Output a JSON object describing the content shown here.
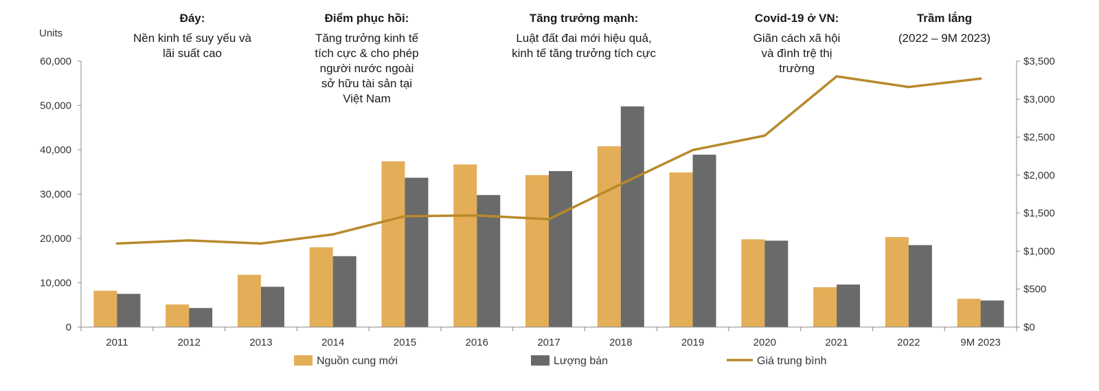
{
  "annotations": [
    {
      "title": "Đáy:",
      "text": "Nền kinh tế suy yếu và\nlãi suất cao"
    },
    {
      "title": "Điểm phục hồi:",
      "text": "Tăng trưởng kinh tế\ntích cực & cho phép\nngười nước ngoài\nsở hữu tài sản tại\nViệt Nam"
    },
    {
      "title": "Tăng trưởng mạnh:",
      "text": "Luật đất đai mới hiệu quả,\nkinh tế tăng trưởng tích cực"
    },
    {
      "title": "Covid-19 ở VN:",
      "text": "Giãn cách xã hội\nvà đình trệ thị\ntrường"
    },
    {
      "title": "Trầm lắng",
      "text": "(2022 – 9M 2023)"
    }
  ],
  "chart_data": {
    "type": "bar",
    "categories": [
      "2011",
      "2012",
      "2013",
      "2014",
      "2015",
      "2016",
      "2017",
      "2018",
      "2019",
      "2020",
      "2021",
      "2022",
      "9M 2023"
    ],
    "ylabel": "Units",
    "ylim": [
      0,
      60000
    ],
    "y_ticks": [
      "0",
      "10,000",
      "20,000",
      "30,000",
      "40,000",
      "50,000",
      "60,000"
    ],
    "y2lim": [
      0,
      3500
    ],
    "y2_ticks": [
      "$0",
      "$500",
      "$1,000",
      "$1,500",
      "$2,000",
      "$2,500",
      "$3,000",
      "$3,500"
    ],
    "series": [
      {
        "name": "Nguồn cung mới",
        "type": "bar",
        "axis": "left",
        "color": "#E3AE57",
        "values": [
          8200,
          5100,
          11800,
          18000,
          37400,
          36700,
          34300,
          40800,
          34900,
          19800,
          9000,
          20300,
          6400
        ]
      },
      {
        "name": "Lượng bán",
        "type": "bar",
        "axis": "left",
        "color": "#6A6A6A",
        "values": [
          7500,
          4300,
          9100,
          16000,
          33700,
          29800,
          35200,
          49800,
          38900,
          19500,
          9600,
          18500,
          6000
        ]
      },
      {
        "name": "Giá trung bình",
        "type": "line",
        "axis": "right",
        "color": "#B8892B",
        "values": [
          1100,
          1140,
          1100,
          1220,
          1460,
          1470,
          1420,
          1880,
          2330,
          2520,
          3300,
          3160,
          3270
        ]
      }
    ],
    "legend_position": "bottom",
    "grid": false
  }
}
